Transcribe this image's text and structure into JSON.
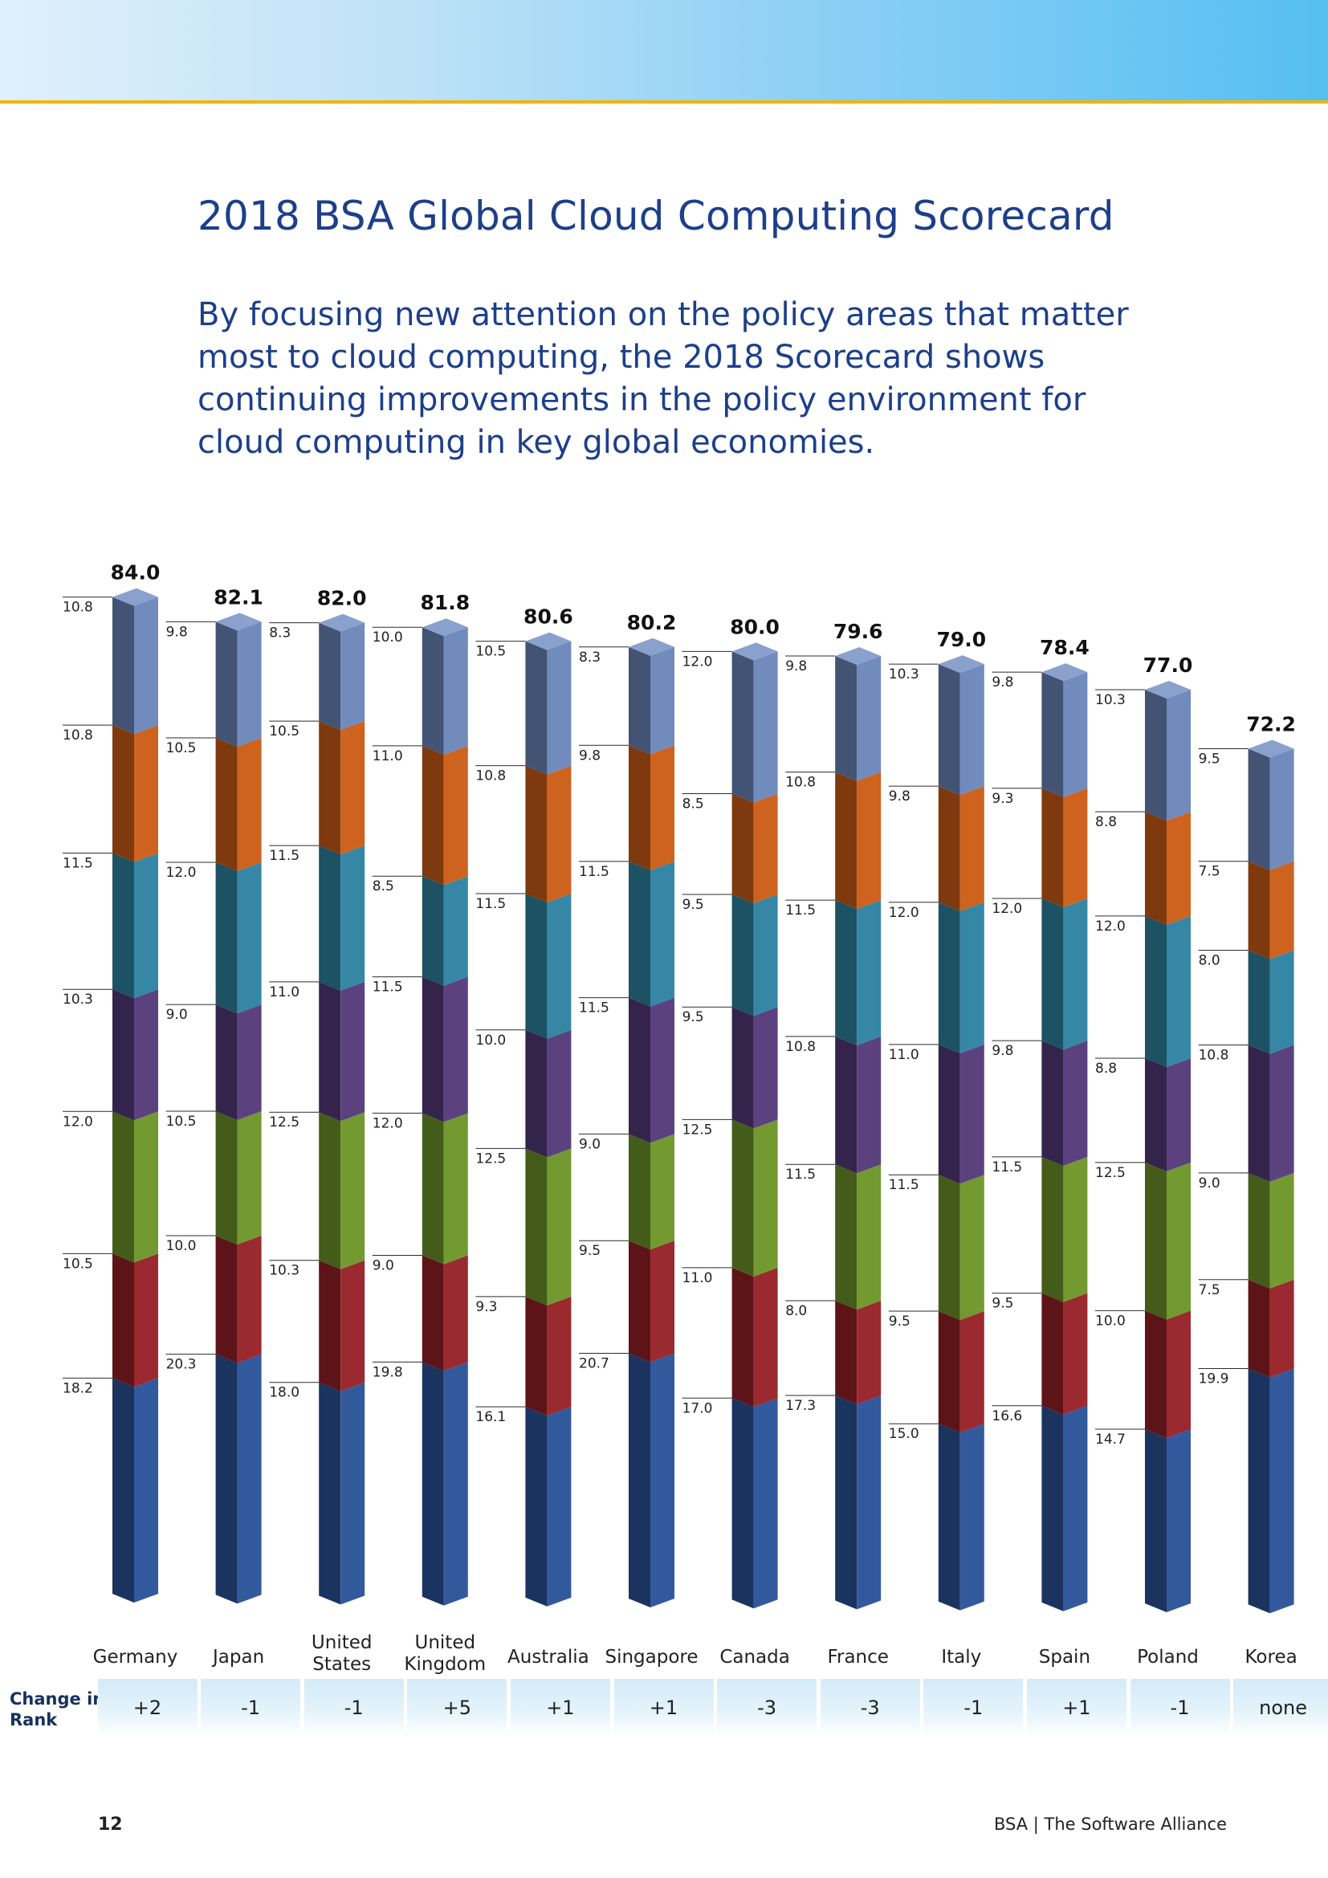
{
  "page": {
    "title": "2018 BSA Global Cloud Computing Scorecard",
    "subtitle": "By focusing new attention on the policy areas that matter most to cloud computing, the 2018 Scorecard shows continuing improvements in the policy environment for cloud computing in key global economies.",
    "change_label": "Change in Rank",
    "page_number": "12",
    "footer": "BSA | The Software Alliance"
  },
  "colors": {
    "segments": [
      "#2b5299",
      "#962127",
      "#6d9528",
      "#543a7a",
      "#2e82a2",
      "#cc5d17",
      "#6b86ba"
    ],
    "accent_rule": "#f2b500",
    "title": "#1d3f8a"
  },
  "chart_data": {
    "type": "bar",
    "stacked": true,
    "categories": [
      "Germany",
      "Japan",
      "United States",
      "United Kingdom",
      "Australia",
      "Singapore",
      "Canada",
      "France",
      "Italy",
      "Spain",
      "Poland",
      "Korea"
    ],
    "totals": [
      84.0,
      82.1,
      82.0,
      81.8,
      80.6,
      80.2,
      80.0,
      79.6,
      79.0,
      78.4,
      77.0,
      72.2
    ],
    "series": [
      {
        "values": [
          18.2,
          20.3,
          18.0,
          19.8,
          16.1,
          20.7,
          17.0,
          17.3,
          15.0,
          16.6,
          14.7,
          19.9
        ]
      },
      {
        "values": [
          10.5,
          10.0,
          10.3,
          9.0,
          9.3,
          9.5,
          11.0,
          8.0,
          9.5,
          9.5,
          10.0,
          7.5
        ]
      },
      {
        "values": [
          12.0,
          10.5,
          12.5,
          12.0,
          12.5,
          9.0,
          12.5,
          11.5,
          11.5,
          11.5,
          12.5,
          9.0
        ]
      },
      {
        "values": [
          10.3,
          9.0,
          11.0,
          11.5,
          10.0,
          11.5,
          9.5,
          10.8,
          11.0,
          9.8,
          8.8,
          10.8
        ]
      },
      {
        "values": [
          11.5,
          12.0,
          11.5,
          8.5,
          11.5,
          11.5,
          9.5,
          11.5,
          12.0,
          12.0,
          12.0,
          8.0
        ]
      },
      {
        "values": [
          10.8,
          10.5,
          10.5,
          11.0,
          10.8,
          9.8,
          8.5,
          10.8,
          9.8,
          9.3,
          8.8,
          7.5
        ]
      },
      {
        "values": [
          10.8,
          9.8,
          8.3,
          10.0,
          10.5,
          8.3,
          12.0,
          9.8,
          10.3,
          9.8,
          10.3,
          9.5
        ]
      }
    ],
    "change_in_rank": [
      "+2",
      "-1",
      "-1",
      "+5",
      "+1",
      "+1",
      "-3",
      "-3",
      "-1",
      "+1",
      "-1",
      "none"
    ]
  }
}
